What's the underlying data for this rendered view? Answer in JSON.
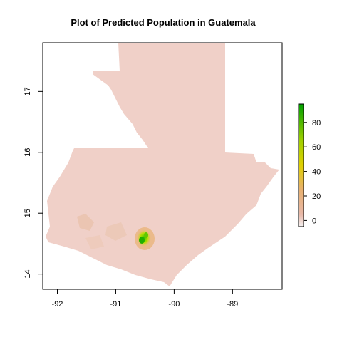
{
  "title": "Plot of Predicted Population in Guatemala",
  "map": {
    "x_ticks": [
      "-92",
      "-91",
      "-90",
      "-89"
    ],
    "y_ticks": [
      "14",
      "15",
      "16",
      "17"
    ],
    "x_range": [
      -92.25,
      -88.15
    ],
    "y_range": [
      13.75,
      17.8
    ],
    "land_color": "#f0d0c8",
    "hotspot_colors": [
      "#00cc00",
      "#cce000",
      "#e8c000",
      "#e8b080"
    ]
  },
  "legend": {
    "labels": [
      "0",
      "20",
      "40",
      "60",
      "80"
    ],
    "values": [
      0,
      20,
      40,
      60,
      80
    ],
    "range": [
      -5,
      95
    ],
    "colors": [
      "#f2f2f2",
      "#e8b0a0",
      "#e8b070",
      "#e0d000",
      "#80c800",
      "#00a000"
    ]
  }
}
